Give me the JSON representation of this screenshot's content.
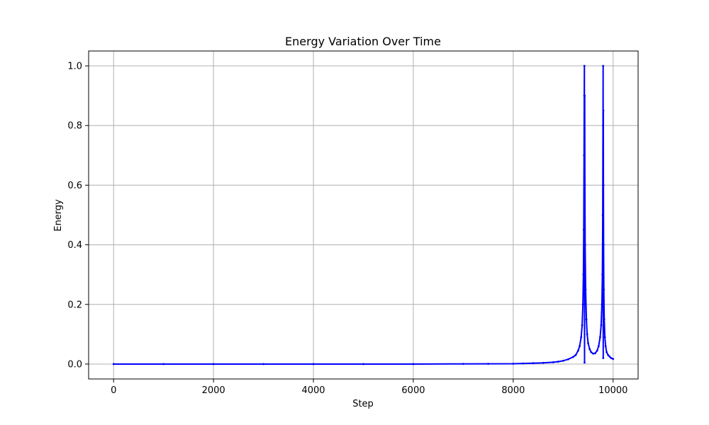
{
  "chart_data": {
    "type": "line",
    "title": "Energy Variation Over Time",
    "xlabel": "Step",
    "ylabel": "Energy",
    "xlim": [
      -500,
      10500
    ],
    "ylim": [
      -0.05,
      1.05
    ],
    "xticks": [
      0,
      2000,
      4000,
      6000,
      8000,
      10000
    ],
    "yticks": [
      0.0,
      0.2,
      0.4,
      0.6,
      0.8,
      1.0
    ],
    "xtick_labels": [
      "0",
      "2000",
      "4000",
      "6000",
      "8000",
      "10000"
    ],
    "ytick_labels": [
      "0.0",
      "0.2",
      "0.4",
      "0.6",
      "0.8",
      "1.0"
    ],
    "grid": true,
    "series": [
      {
        "color": "#0000ff",
        "marker": "dot",
        "x": [
          0,
          1000,
          2000,
          3000,
          4000,
          5000,
          6000,
          7000,
          7500,
          8000,
          8200,
          8400,
          8600,
          8800,
          8900,
          9000,
          9100,
          9200,
          9250,
          9300,
          9330,
          9360,
          9380,
          9395,
          9405,
          9412,
          9418,
          9422,
          9425,
          9428,
          9431,
          9435,
          9440,
          9450,
          9465,
          9480,
          9500,
          9530,
          9560,
          9600,
          9640,
          9680,
          9710,
          9740,
          9760,
          9775,
          9785,
          9792,
          9797,
          9800,
          9802,
          9804,
          9806,
          9809,
          9814,
          9822,
          9835,
          9850,
          9870,
          9900,
          9930,
          9960,
          10000
        ],
        "y": [
          0.0,
          0.0,
          0.0,
          0.0,
          0.0,
          0.0,
          0.0,
          0.0005,
          0.0008,
          0.001,
          0.002,
          0.003,
          0.004,
          0.006,
          0.008,
          0.011,
          0.016,
          0.024,
          0.03,
          0.045,
          0.06,
          0.09,
          0.13,
          0.2,
          0.3,
          0.45,
          0.7,
          0.9,
          1.0,
          0.005,
          0.9,
          0.6,
          0.4,
          0.25,
          0.15,
          0.1,
          0.07,
          0.05,
          0.04,
          0.035,
          0.036,
          0.045,
          0.06,
          0.09,
          0.13,
          0.2,
          0.3,
          0.5,
          0.8,
          1.0,
          0.02,
          0.85,
          0.6,
          0.4,
          0.25,
          0.15,
          0.09,
          0.06,
          0.04,
          0.03,
          0.025,
          0.02,
          0.017
        ]
      }
    ]
  }
}
